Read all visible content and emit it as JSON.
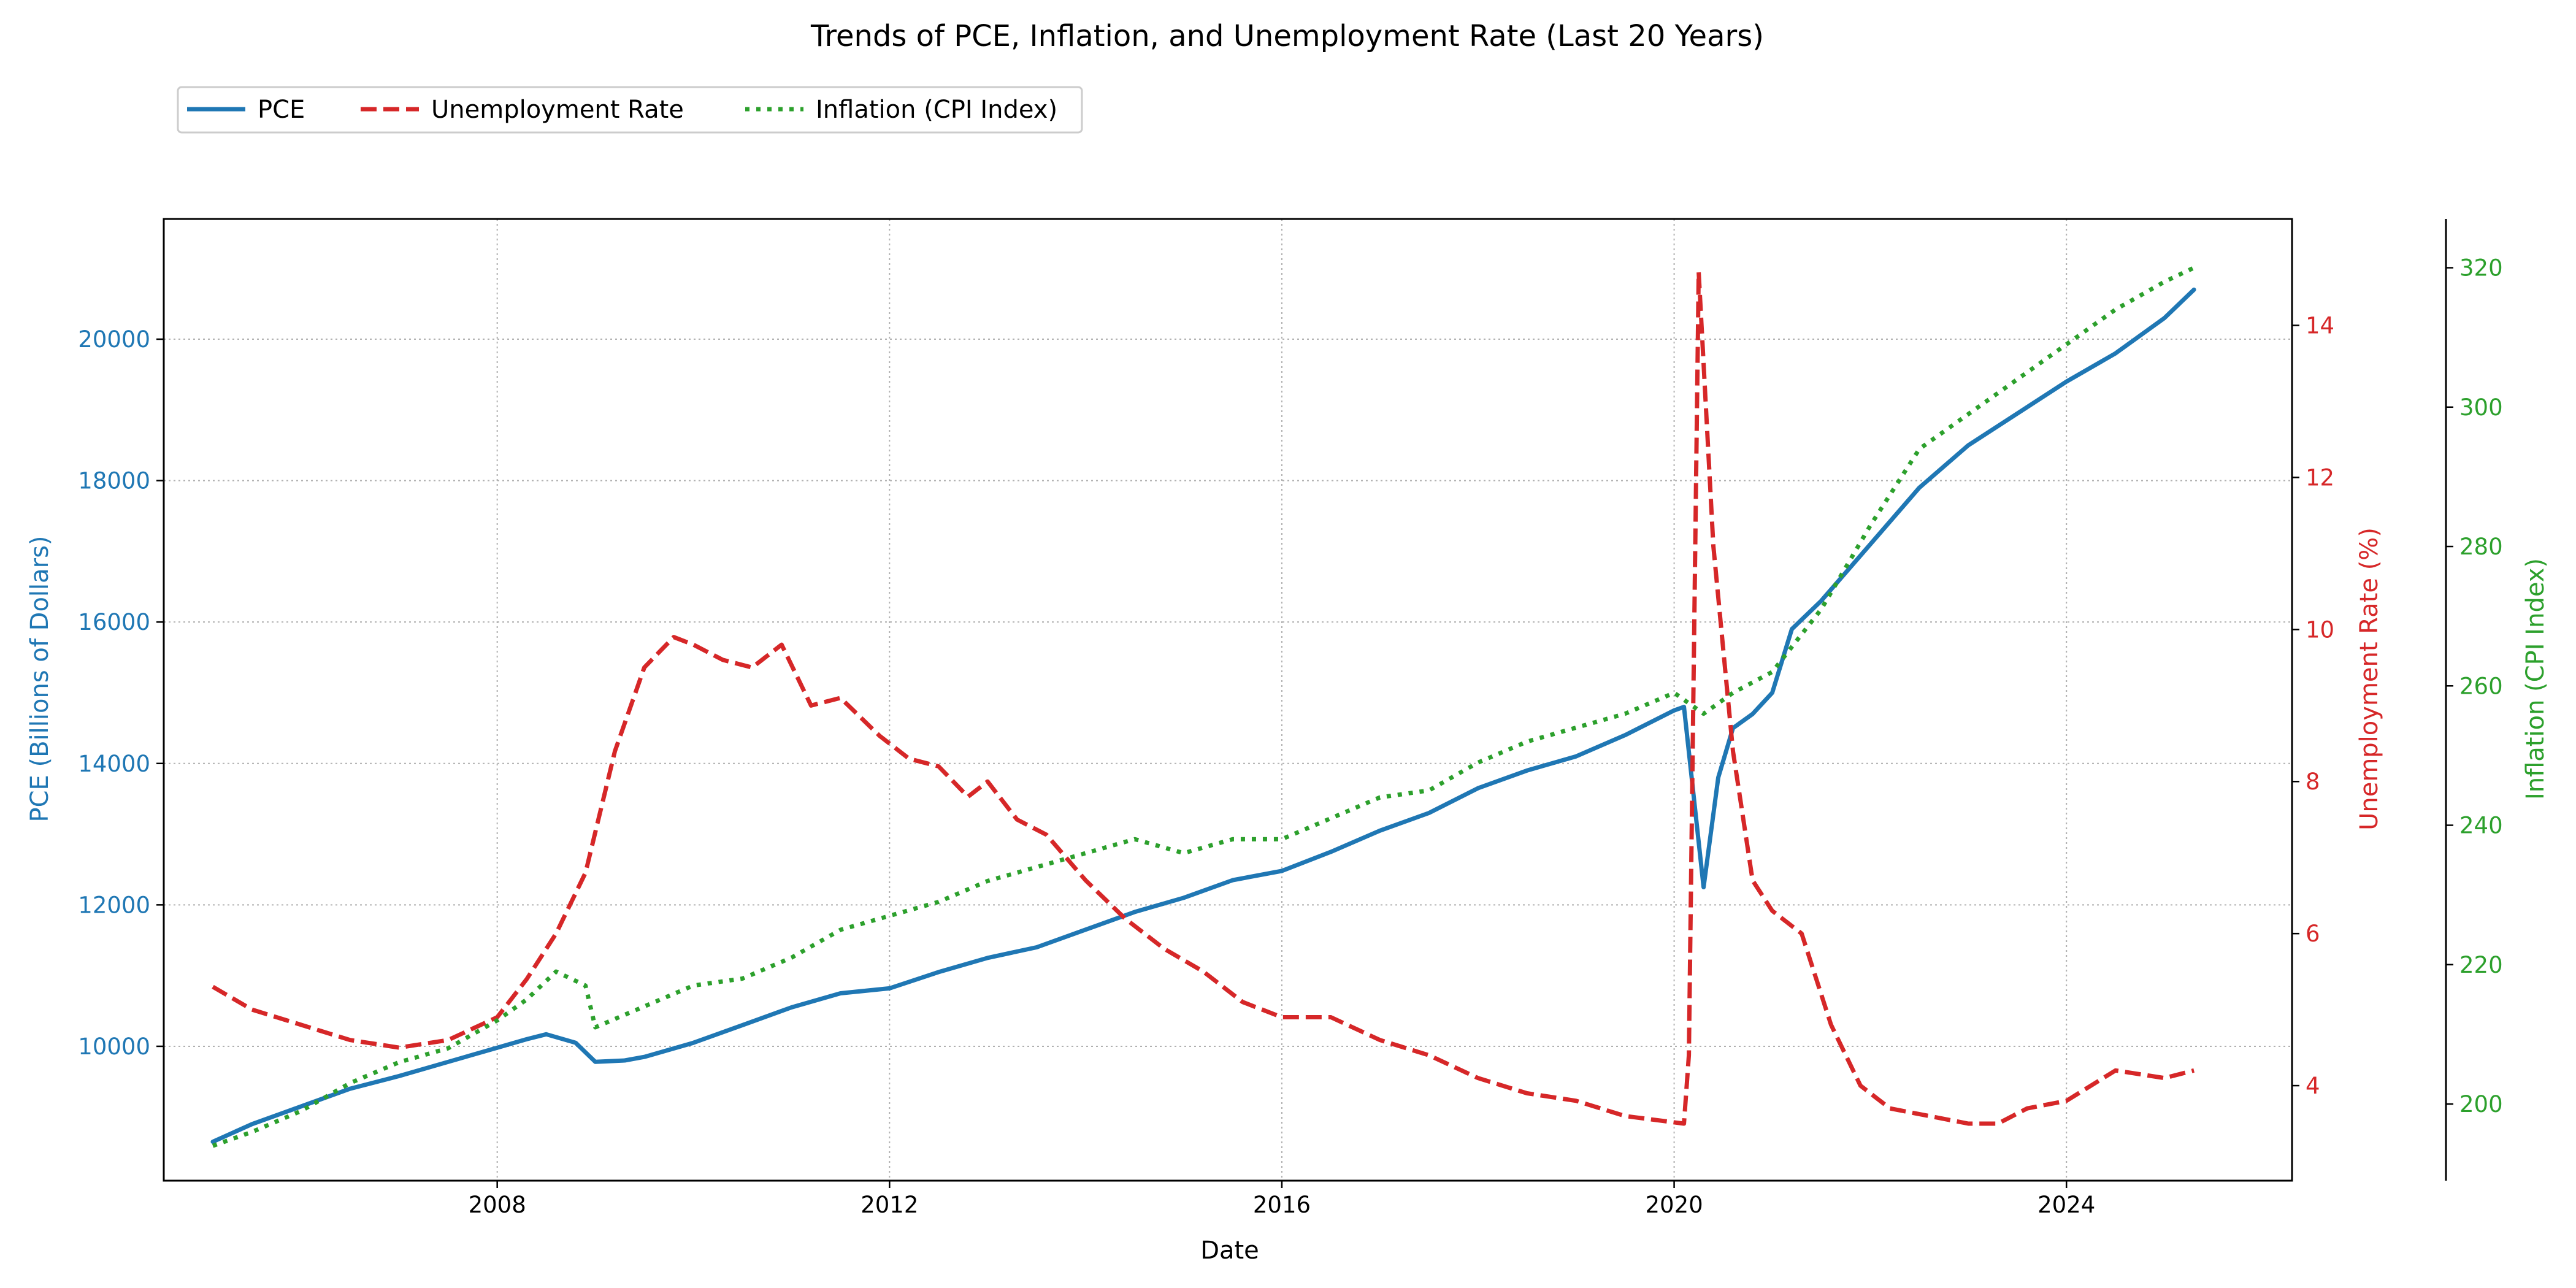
{
  "chart_data": {
    "type": "line",
    "title": "Trends of PCE, Inflation, and Unemployment Rate (Last 20 Years)",
    "xlabel": "Date",
    "x_ticks": [
      "2008",
      "2012",
      "2016",
      "2020",
      "2024"
    ],
    "x_range": [
      2004.6,
      2026.3
    ],
    "grid": true,
    "legend_placement": "top-left, above plot",
    "axes": {
      "left": {
        "label": "PCE (Billions of Dollars)",
        "color": "#1f77b4",
        "range": [
          8100,
          21700
        ],
        "ticks": [
          "10000",
          "12000",
          "14000",
          "16000",
          "18000",
          "20000"
        ]
      },
      "right1": {
        "label": "Unemployment Rate (%)",
        "color": "#d62728",
        "range": [
          2.75,
          15.4
        ],
        "ticks": [
          "4",
          "6",
          "8",
          "10",
          "12",
          "14"
        ]
      },
      "right2": {
        "label": "Inflation (CPI Index)",
        "color": "#2ca02c",
        "range": [
          189,
          327
        ],
        "ticks": [
          "200",
          "220",
          "240",
          "260",
          "280",
          "300",
          "320"
        ]
      }
    },
    "series": [
      {
        "name": "PCE",
        "axis": "left",
        "color": "#1f77b4",
        "style": "solid",
        "x": [
          2005.1,
          2005.5,
          2006.0,
          2006.5,
          2007.0,
          2007.5,
          2008.0,
          2008.3,
          2008.5,
          2008.8,
          2009.0,
          2009.3,
          2009.5,
          2010.0,
          2010.5,
          2011.0,
          2011.5,
          2012.0,
          2012.5,
          2013.0,
          2013.5,
          2014.0,
          2014.5,
          2015.0,
          2015.5,
          2016.0,
          2016.5,
          2017.0,
          2017.5,
          2018.0,
          2018.5,
          2019.0,
          2019.5,
          2020.0,
          2020.1,
          2020.3,
          2020.45,
          2020.6,
          2020.8,
          2021.0,
          2021.2,
          2021.5,
          2022.0,
          2022.5,
          2023.0,
          2023.5,
          2024.0,
          2024.5,
          2025.0,
          2025.3
        ],
        "y": [
          8650,
          8900,
          9150,
          9400,
          9580,
          9780,
          9980,
          10100,
          10170,
          10050,
          9780,
          9800,
          9850,
          10050,
          10300,
          10550,
          10750,
          10820,
          11050,
          11250,
          11400,
          11650,
          11900,
          12100,
          12350,
          12480,
          12750,
          13050,
          13300,
          13650,
          13900,
          14100,
          14400,
          14750,
          14800,
          12250,
          13800,
          14500,
          14700,
          15000,
          15900,
          16300,
          17100,
          17900,
          18500,
          18950,
          19400,
          19800,
          20300,
          20700
        ]
      },
      {
        "name": "Unemployment Rate",
        "axis": "right1",
        "color": "#d62728",
        "style": "dashed",
        "x": [
          2005.1,
          2005.5,
          2006.0,
          2006.5,
          2007.0,
          2007.5,
          2008.0,
          2008.3,
          2008.6,
          2008.9,
          2009.2,
          2009.5,
          2009.8,
          2010.0,
          2010.3,
          2010.6,
          2010.9,
          2011.2,
          2011.5,
          2011.9,
          2012.2,
          2012.5,
          2012.8,
          2013.0,
          2013.3,
          2013.6,
          2014.0,
          2014.4,
          2014.8,
          2015.2,
          2015.6,
          2016.0,
          2016.5,
          2017.0,
          2017.5,
          2018.0,
          2018.5,
          2019.0,
          2019.5,
          2020.1,
          2020.15,
          2020.25,
          2020.4,
          2020.6,
          2020.8,
          2021.0,
          2021.3,
          2021.6,
          2021.9,
          2022.2,
          2022.6,
          2023.0,
          2023.3,
          2023.6,
          2024.0,
          2024.5,
          2025.0,
          2025.3
        ],
        "y": [
          5.3,
          5.0,
          4.8,
          4.6,
          4.5,
          4.6,
          4.9,
          5.4,
          6.0,
          6.8,
          8.4,
          9.5,
          9.9,
          9.8,
          9.6,
          9.5,
          9.8,
          9.0,
          9.1,
          8.6,
          8.3,
          8.2,
          7.8,
          8.0,
          7.5,
          7.3,
          6.7,
          6.2,
          5.8,
          5.5,
          5.1,
          4.9,
          4.9,
          4.6,
          4.4,
          4.1,
          3.9,
          3.8,
          3.6,
          3.5,
          4.4,
          14.7,
          11.1,
          8.4,
          6.7,
          6.3,
          6.0,
          4.8,
          4.0,
          3.7,
          3.6,
          3.5,
          3.5,
          3.7,
          3.8,
          4.2,
          4.1,
          4.2
        ]
      },
      {
        "name": "Inflation (CPI Index)",
        "axis": "right2",
        "color": "#2ca02c",
        "style": "dotted",
        "x": [
          2005.1,
          2005.5,
          2006.0,
          2006.5,
          2007.0,
          2007.5,
          2008.0,
          2008.3,
          2008.6,
          2008.9,
          2009.0,
          2009.5,
          2010.0,
          2010.5,
          2011.0,
          2011.5,
          2012.0,
          2012.5,
          2013.0,
          2013.5,
          2014.0,
          2014.5,
          2015.0,
          2015.5,
          2016.0,
          2016.5,
          2017.0,
          2017.5,
          2018.0,
          2018.5,
          2019.0,
          2019.5,
          2020.0,
          2020.3,
          2020.6,
          2021.0,
          2021.5,
          2022.0,
          2022.5,
          2023.0,
          2023.5,
          2024.0,
          2024.5,
          2025.0,
          2025.3
        ],
        "y": [
          194,
          196,
          199,
          203,
          206,
          208,
          212,
          215,
          219,
          217,
          211,
          214,
          217,
          218,
          221,
          225,
          227,
          229,
          232,
          234,
          236,
          238,
          236,
          238,
          238,
          241,
          244,
          245,
          249,
          252,
          254,
          256,
          259,
          256,
          259,
          262,
          271,
          283,
          294,
          299,
          304,
          309,
          314,
          318,
          320
        ]
      }
    ]
  }
}
